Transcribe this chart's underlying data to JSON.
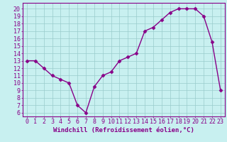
{
  "x": [
    0,
    1,
    2,
    3,
    4,
    5,
    6,
    7,
    8,
    9,
    10,
    11,
    12,
    13,
    14,
    15,
    16,
    17,
    18,
    19,
    20,
    21,
    22,
    23
  ],
  "y": [
    13,
    13,
    12,
    11,
    10.5,
    10,
    7,
    6,
    9.5,
    11,
    11.5,
    13,
    13.5,
    14,
    17,
    17.5,
    18.5,
    19.5,
    20,
    20,
    20,
    19,
    15.5,
    9
  ],
  "line_color": "#880088",
  "marker": "D",
  "marker_size": 2.5,
  "bg_color": "#c8f0f0",
  "grid_color": "#99cccc",
  "xlabel": "Windchill (Refroidissement éolien,°C)",
  "xlim": [
    -0.5,
    23.5
  ],
  "ylim": [
    5.5,
    20.8
  ],
  "yticks": [
    6,
    7,
    8,
    9,
    10,
    11,
    12,
    13,
    14,
    15,
    16,
    17,
    18,
    19,
    20
  ],
  "xticks": [
    0,
    1,
    2,
    3,
    4,
    5,
    6,
    7,
    8,
    9,
    10,
    11,
    12,
    13,
    14,
    15,
    16,
    17,
    18,
    19,
    20,
    21,
    22,
    23
  ],
  "tick_color": "#880088",
  "label_color": "#880088",
  "font_size": 6,
  "xlabel_fontsize": 6.5,
  "linewidth": 1.0
}
